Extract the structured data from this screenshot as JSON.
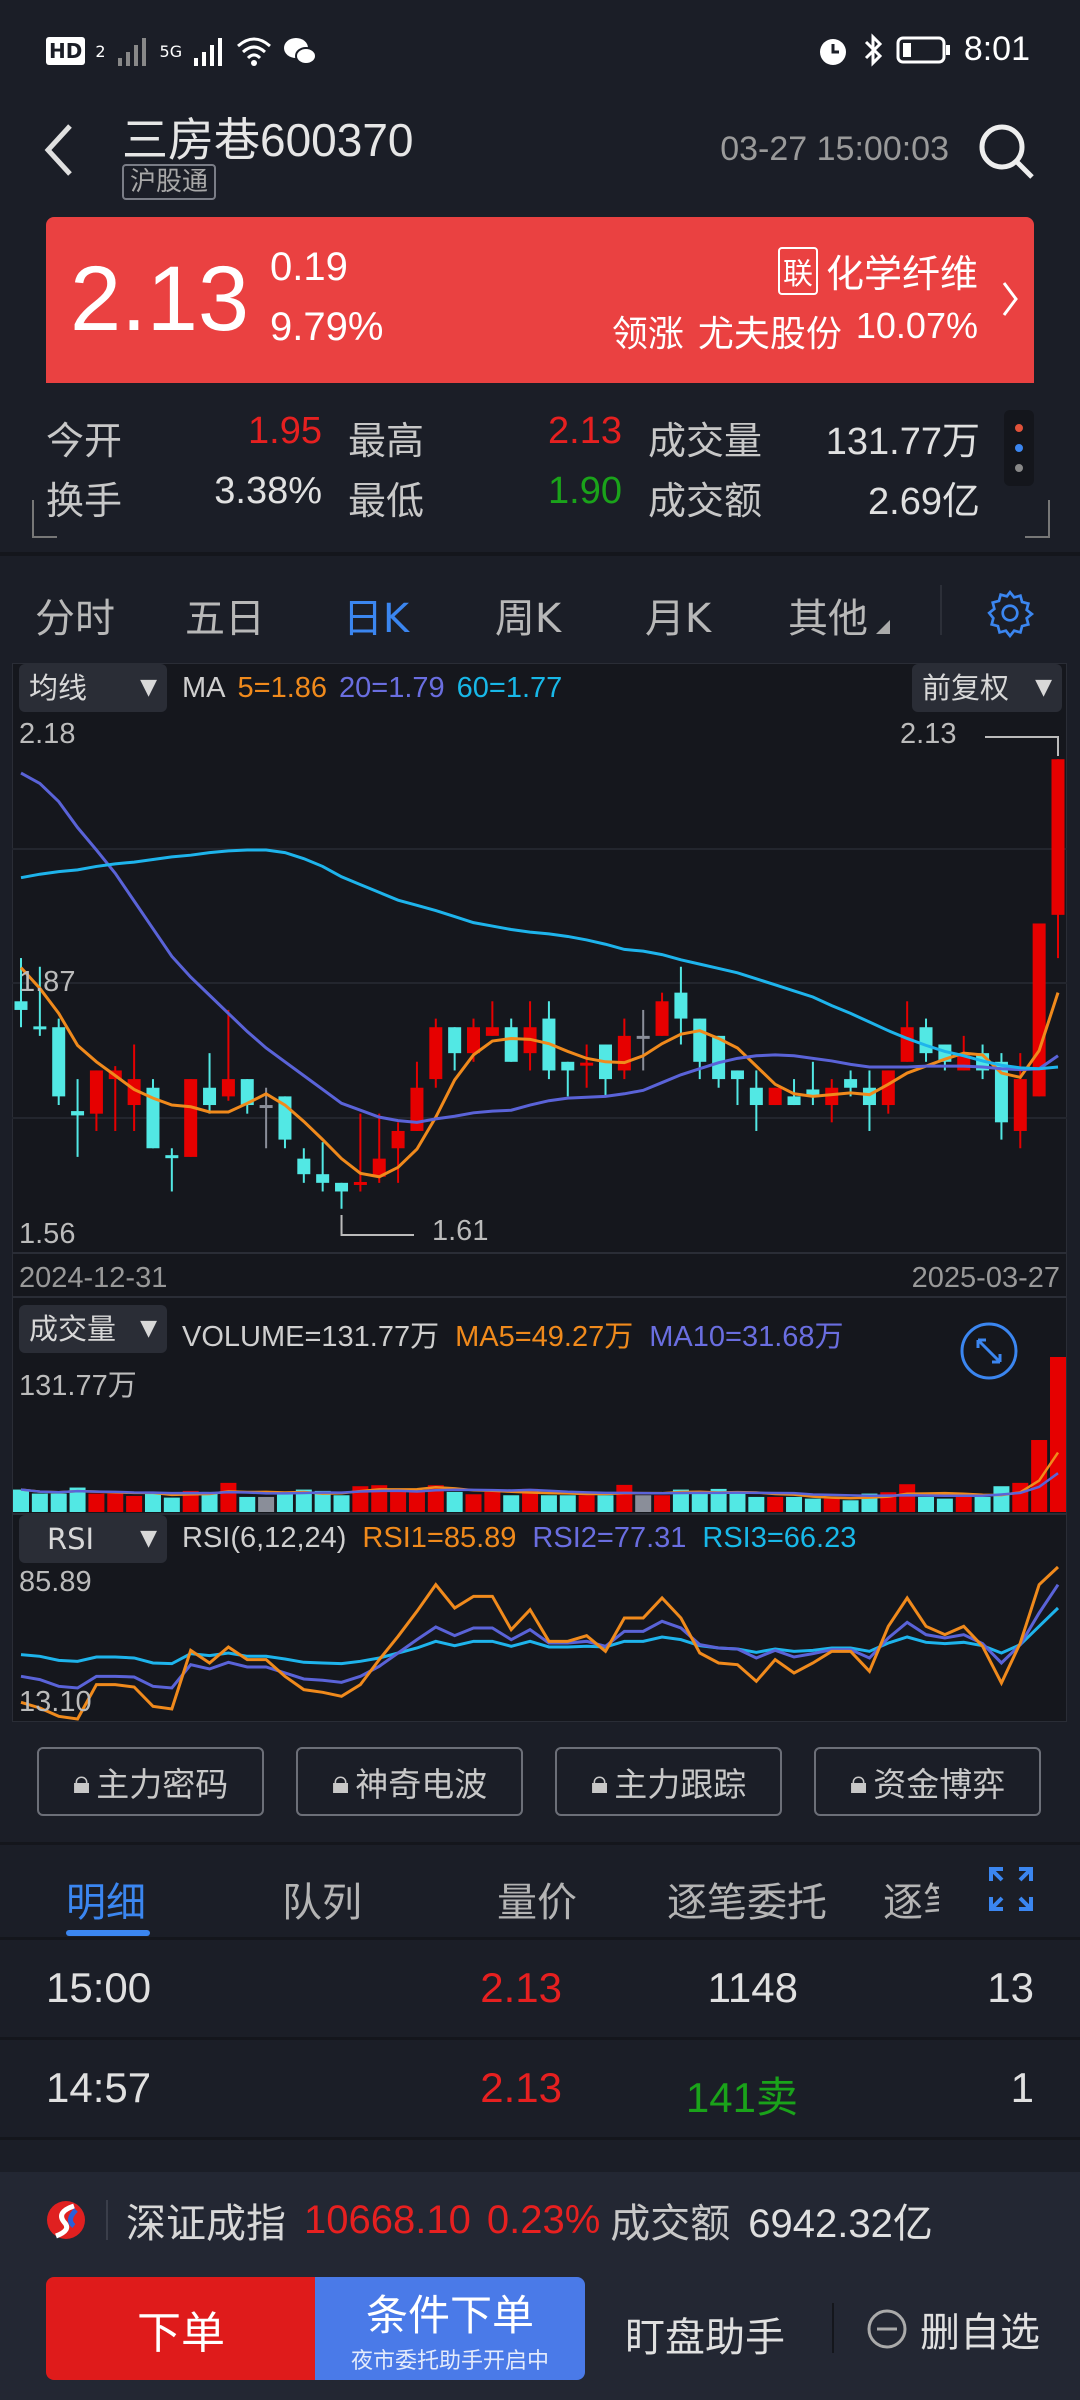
{
  "status_bar": {
    "left_icons": [
      "hd-icon",
      "signal-icon",
      "5g-signal-icon",
      "wifi-icon",
      "wechat-icon"
    ],
    "network": "5G",
    "hd": "HD",
    "sim": "2",
    "time": "8:01",
    "right_icons": [
      "alarm-icon",
      "bluetooth-icon",
      "battery-icon"
    ]
  },
  "header": {
    "stock_name": "三房巷",
    "stock_code": "600370",
    "badge": "沪股通",
    "timestamp": "03-27 15:00:03"
  },
  "quote": {
    "price": "2.13",
    "change": "0.19",
    "change_pct": "9.79%",
    "sector_tag": "联",
    "sector": "化学纤维",
    "leader_label": "领涨",
    "leader_name": "尤夫股份",
    "leader_pct": "10.07%",
    "color": "#ea4141"
  },
  "stats": {
    "row1": [
      {
        "label": "今开",
        "value": "1.95"
      },
      {
        "label": "最高",
        "value": "2.13"
      },
      {
        "label": "成交量",
        "value": "131.77万"
      }
    ],
    "row2": [
      {
        "label": "换手",
        "value": "3.38%"
      },
      {
        "label": "最低",
        "value": "1.90"
      },
      {
        "label": "成交额",
        "value": "2.69亿"
      }
    ]
  },
  "period_tabs": [
    {
      "label": "分时"
    },
    {
      "label": "五日"
    },
    {
      "label": "日K",
      "active": true
    },
    {
      "label": "周K"
    },
    {
      "label": "月K"
    },
    {
      "label": "其他"
    }
  ],
  "kline": {
    "indicator_select": "均线",
    "adjust_select": "前复权",
    "ma_label": "MA",
    "ma5": "5=1.86",
    "ma20": "20=1.79",
    "ma60": "60=1.77",
    "y_max_label": "2.18",
    "y_mid_label": "1.87",
    "y_min_label": "1.56",
    "high_mark": "2.13",
    "low_mark": "1.61",
    "start_date": "2024-12-31",
    "end_date": "2025-03-27"
  },
  "volume": {
    "select": "成交量",
    "volume_label": "VOLUME=131.77万",
    "ma5_label": "MA5=49.27万",
    "ma10_label": "MA10=31.68万",
    "max_label": "131.77万"
  },
  "rsi": {
    "select": "RSI",
    "params": "RSI(6,12,24)",
    "rsi1_label": "RSI1=85.89",
    "rsi2_label": "RSI2=77.31",
    "rsi3_label": "RSI3=66.23",
    "max_label": "85.89",
    "min_label": "13.10"
  },
  "chart_data": [
    {
      "type": "candlestick",
      "ylim": [
        1.56,
        2.18
      ],
      "x_start": "2024-12-31",
      "x_end": "2025-03-27",
      "ohlc": [
        [
          1.85,
          1.9,
          1.82,
          1.84
        ],
        [
          1.821,
          1.89,
          1.81,
          1.818
        ],
        [
          1.82,
          1.83,
          1.73,
          1.74
        ],
        [
          1.723,
          1.76,
          1.67,
          1.718
        ],
        [
          1.72,
          1.77,
          1.7,
          1.77
        ],
        [
          1.76,
          1.775,
          1.7,
          1.77
        ],
        [
          1.73,
          1.8,
          1.7,
          1.76
        ],
        [
          1.75,
          1.76,
          1.68,
          1.68
        ],
        [
          1.672,
          1.68,
          1.63,
          1.669
        ],
        [
          1.67,
          1.76,
          1.67,
          1.76
        ],
        [
          1.75,
          1.79,
          1.72,
          1.73
        ],
        [
          1.74,
          1.84,
          1.735,
          1.76
        ],
        [
          1.76,
          1.76,
          1.72,
          1.73
        ],
        [
          1.73,
          1.75,
          1.68,
          1.73
        ],
        [
          1.74,
          1.74,
          1.68,
          1.69
        ],
        [
          1.668,
          1.68,
          1.64,
          1.65
        ],
        [
          1.65,
          1.687,
          1.63,
          1.64
        ],
        [
          1.64,
          1.64,
          1.61,
          1.63
        ],
        [
          1.638,
          1.72,
          1.63,
          1.641
        ],
        [
          1.647,
          1.72,
          1.64,
          1.668
        ],
        [
          1.68,
          1.71,
          1.64,
          1.7
        ],
        [
          1.7,
          1.78,
          1.7,
          1.75
        ],
        [
          1.76,
          1.83,
          1.75,
          1.82
        ],
        [
          1.82,
          1.82,
          1.77,
          1.79
        ],
        [
          1.79,
          1.83,
          1.78,
          1.82
        ],
        [
          1.81,
          1.85,
          1.81,
          1.82
        ],
        [
          1.82,
          1.83,
          1.78,
          1.78
        ],
        [
          1.79,
          1.85,
          1.77,
          1.82
        ],
        [
          1.83,
          1.85,
          1.76,
          1.77
        ],
        [
          1.78,
          1.78,
          1.74,
          1.77
        ],
        [
          1.777,
          1.8,
          1.75,
          1.779
        ],
        [
          1.8,
          1.8,
          1.74,
          1.76
        ],
        [
          1.77,
          1.83,
          1.76,
          1.81
        ],
        [
          1.81,
          1.84,
          1.77,
          1.81
        ],
        [
          1.81,
          1.86,
          1.81,
          1.85
        ],
        [
          1.86,
          1.89,
          1.8,
          1.83
        ],
        [
          1.83,
          1.83,
          1.76,
          1.78
        ],
        [
          1.81,
          1.81,
          1.75,
          1.76
        ],
        [
          1.77,
          1.77,
          1.73,
          1.76
        ],
        [
          1.75,
          1.77,
          1.7,
          1.73
        ],
        [
          1.73,
          1.75,
          1.73,
          1.75
        ],
        [
          1.74,
          1.76,
          1.73,
          1.73
        ],
        [
          1.748,
          1.78,
          1.73,
          1.74
        ],
        [
          1.73,
          1.76,
          1.71,
          1.75
        ],
        [
          1.76,
          1.77,
          1.74,
          1.75
        ],
        [
          1.75,
          1.77,
          1.7,
          1.73
        ],
        [
          1.73,
          1.77,
          1.72,
          1.77
        ],
        [
          1.78,
          1.85,
          1.78,
          1.82
        ],
        [
          1.82,
          1.83,
          1.78,
          1.79
        ],
        [
          1.8,
          1.8,
          1.77,
          1.78
        ],
        [
          1.77,
          1.81,
          1.77,
          1.79
        ],
        [
          1.79,
          1.8,
          1.76,
          1.77
        ],
        [
          1.78,
          1.79,
          1.69,
          1.71
        ],
        [
          1.7,
          1.79,
          1.68,
          1.76
        ],
        [
          1.74,
          1.94,
          1.74,
          1.94
        ],
        [
          1.95,
          2.13,
          1.9,
          2.13
        ]
      ],
      "series": [
        {
          "name": "MA5",
          "color": "#f08a1c",
          "values": [
            1.889,
            1.865,
            1.836,
            1.799,
            1.78,
            1.764,
            1.748,
            1.738,
            1.73,
            1.728,
            1.722,
            1.722,
            1.732,
            1.743,
            1.73,
            1.711,
            1.69,
            1.668,
            1.651,
            1.647,
            1.658,
            1.679,
            1.716,
            1.759,
            1.788,
            1.804,
            1.807,
            1.806,
            1.801,
            1.792,
            1.784,
            1.78,
            1.779,
            1.787,
            1.801,
            1.812,
            1.816,
            1.807,
            1.796,
            1.775,
            1.754,
            1.743,
            1.74,
            1.742,
            1.744,
            1.742,
            1.754,
            1.767,
            1.775,
            1.783,
            1.79,
            1.788,
            1.767,
            1.762,
            1.793,
            1.86
          ]
        },
        {
          "name": "MA20",
          "color": "#5a63d8",
          "values": [
            2.114,
            2.102,
            2.081,
            2.051,
            2.025,
            1.998,
            1.966,
            1.934,
            1.902,
            1.878,
            1.857,
            1.836,
            1.815,
            1.796,
            1.78,
            1.764,
            1.748,
            1.732,
            1.724,
            1.716,
            1.712,
            1.71,
            1.714,
            1.717,
            1.721,
            1.723,
            1.724,
            1.73,
            1.735,
            1.738,
            1.739,
            1.74,
            1.743,
            1.747,
            1.756,
            1.765,
            1.772,
            1.779,
            1.784,
            1.787,
            1.788,
            1.787,
            1.784,
            1.781,
            1.777,
            1.774,
            1.774,
            1.774,
            1.775,
            1.775,
            1.775,
            1.774,
            1.772,
            1.771,
            1.772,
            1.787
          ]
        },
        {
          "name": "MA60",
          "color": "#1eb4ec",
          "values": [
            1.993,
            1.997,
            2.0,
            2.002,
            2.006,
            2.009,
            2.011,
            2.014,
            2.017,
            2.019,
            2.022,
            2.024,
            2.025,
            2.025,
            2.022,
            2.015,
            2.006,
            1.994,
            1.985,
            1.976,
            1.967,
            1.961,
            1.955,
            1.948,
            1.941,
            1.937,
            1.933,
            1.93,
            1.928,
            1.925,
            1.921,
            1.916,
            1.91,
            1.908,
            1.904,
            1.898,
            1.893,
            1.888,
            1.883,
            1.876,
            1.869,
            1.862,
            1.855,
            1.845,
            1.836,
            1.826,
            1.816,
            1.807,
            1.799,
            1.792,
            1.787,
            1.781,
            1.776,
            1.773,
            1.772,
            1.774
          ]
        }
      ],
      "up_color": "#e60000",
      "down_color": "#52e8e4",
      "flat_color": "#8a8e99"
    },
    {
      "type": "bar",
      "unit": "万",
      "ylim": [
        0,
        131.77
      ],
      "values": [
        19.07,
        15.65,
        15.65,
        20.78,
        15.65,
        15.65,
        13.66,
        15.65,
        12.24,
        17.93,
        17.08,
        24.76,
        12.81,
        12.81,
        15.65,
        19.07,
        17.93,
        14.23,
        21.91,
        22.77,
        19.07,
        18.5,
        22.77,
        17.08,
        15.08,
        17.08,
        14.23,
        19.64,
        14.23,
        14.23,
        14.23,
        14.23,
        23.05,
        14.23,
        14.23,
        19.07,
        15.65,
        19.64,
        15.65,
        12.81,
        12.81,
        12.81,
        11.38,
        11.38,
        9.96,
        15.65,
        16.79,
        23.62,
        12.81,
        11.38,
        12.81,
        12.81,
        21.91,
        24.76,
        61.2,
        131.77
      ]
    },
    {
      "type": "line",
      "ylim": [
        13.1,
        85.89
      ],
      "series": [
        {
          "name": "RSI1",
          "color": "#f08a1c",
          "values": [
            21.09,
            18.38,
            14.39,
            13.11,
            29.55,
            29.55,
            28.43,
            19.18,
            17.9,
            45.99,
            39.93,
            47.59,
            41.52,
            41.52,
            33.54,
            27.16,
            25.88,
            23.97,
            29.55,
            41.52,
            52.69,
            64.66,
            77.43,
            66.26,
            71.85,
            71.85,
            55.89,
            65.46,
            50.3,
            50.3,
            53.01,
            45.51,
            61.47,
            61.47,
            71.05,
            61.47,
            44.71,
            39.93,
            39.13,
            31.15,
            41.52,
            35.14,
            39.93,
            45.51,
            45.51,
            35.94,
            57.48,
            71.05,
            57.48,
            53.49,
            57.48,
            47.91,
            30.35,
            49.5,
            77.43,
            85.89
          ]
        },
        {
          "name": "RSI2",
          "color": "#5a63d8",
          "values": [
            33.54,
            31.95,
            28.75,
            27.96,
            33.54,
            33.54,
            33.22,
            28.75,
            27.96,
            39.13,
            37.05,
            40.25,
            38.01,
            38.01,
            35.14,
            32.27,
            31.63,
            30.67,
            33.54,
            38.33,
            44.71,
            51.1,
            57.16,
            53.01,
            56.68,
            56.68,
            51.1,
            55.89,
            49.5,
            49.5,
            50.3,
            47.91,
            55.09,
            55.09,
            59.88,
            56.68,
            48.7,
            47.11,
            46.63,
            42.32,
            45.99,
            42.8,
            44.39,
            46.31,
            46.31,
            42.32,
            51.9,
            59.4,
            53.49,
            51.9,
            53.49,
            49.18,
            39.93,
            48.7,
            63.87,
            77.43
          ]
        },
        {
          "name": "RSI3",
          "color": "#1eb4ec",
          "values": [
            43.92,
            43.12,
            41.2,
            40.72,
            42.8,
            42.8,
            42.32,
            39.93,
            39.61,
            44.39,
            43.44,
            44.71,
            43.12,
            43.12,
            41.84,
            40.25,
            39.93,
            39.61,
            40.72,
            42.32,
            44.71,
            47.11,
            50.3,
            48.22,
            50.3,
            50.3,
            47.91,
            50.3,
            47.59,
            47.59,
            47.91,
            47.59,
            50.3,
            50.3,
            52.37,
            51.1,
            48.22,
            47.11,
            46.63,
            45.03,
            46.63,
            45.51,
            45.99,
            47.11,
            47.11,
            45.51,
            49.5,
            52.37,
            49.82,
            49.18,
            49.82,
            48.22,
            44.71,
            48.7,
            57.48,
            66.26
          ]
        }
      ]
    }
  ],
  "feature_buttons": [
    {
      "label": "主力密码"
    },
    {
      "label": "神奇电波"
    },
    {
      "label": "主力跟踪"
    },
    {
      "label": "资金博弈"
    }
  ],
  "detail_tabs": [
    {
      "label": "明细",
      "active": true
    },
    {
      "label": "队列"
    },
    {
      "label": "量价"
    },
    {
      "label": "逐笔委托"
    },
    {
      "label": "逐笔"
    }
  ],
  "trades": [
    {
      "time": "15:00",
      "price": "2.13",
      "volume": "1148",
      "count": "13"
    },
    {
      "time": "14:57",
      "price": "2.13",
      "volume": "141卖",
      "count": "1"
    }
  ],
  "index_bar": {
    "name": "深证成指",
    "value": "10668.10",
    "change_pct": "0.23%",
    "turnover_label": "成交额",
    "turnover": "6942.32亿"
  },
  "bottom_bar": {
    "order": "下单",
    "conditional_order": "条件下单",
    "conditional_sub": "夜市委托助手开启中",
    "monitor": "盯盘助手",
    "remove_watch": "删自选"
  }
}
